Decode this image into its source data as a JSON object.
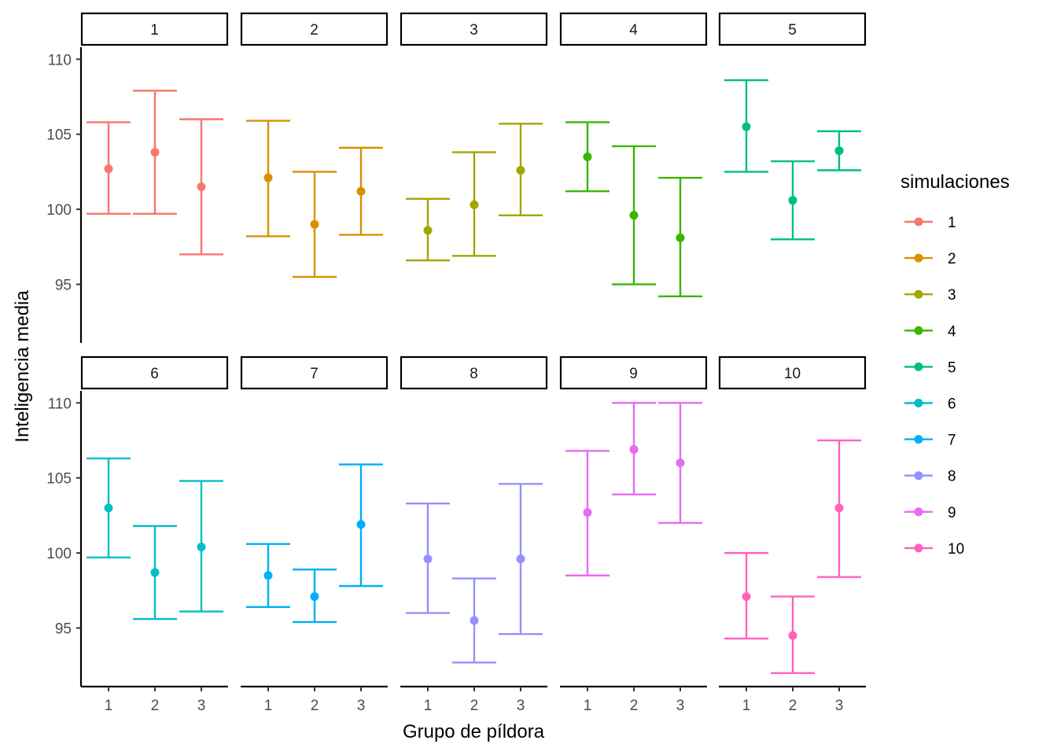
{
  "chart_data": {
    "type": "errorbar",
    "xlabel": "Grupo de píldora",
    "ylabel": "Inteligencia media",
    "categories": [
      "1",
      "2",
      "3"
    ],
    "ylim": [
      91.1,
      110.8
    ],
    "yticks": [
      95,
      100,
      105,
      110
    ],
    "layout": "facet grid, 2 rows x 5 columns",
    "legend": {
      "title": "simulaciones",
      "position": "right",
      "items": [
        "1",
        "2",
        "3",
        "4",
        "5",
        "6",
        "7",
        "8",
        "9",
        "10"
      ]
    },
    "grid": false,
    "panels": [
      {
        "facet": "1",
        "color": "#F8766D",
        "mean": [
          102.7,
          103.8,
          101.5
        ],
        "lower": [
          99.7,
          99.7,
          97.0
        ],
        "upper": [
          105.8,
          107.9,
          106.0
        ]
      },
      {
        "facet": "2",
        "color": "#D89000",
        "mean": [
          102.1,
          99.0,
          101.2
        ],
        "lower": [
          98.2,
          95.5,
          98.3
        ],
        "upper": [
          105.9,
          102.5,
          104.1
        ]
      },
      {
        "facet": "3",
        "color": "#A3A500",
        "mean": [
          98.6,
          100.3,
          102.6
        ],
        "lower": [
          96.6,
          96.9,
          99.6
        ],
        "upper": [
          100.7,
          103.8,
          105.7
        ]
      },
      {
        "facet": "4",
        "color": "#39B600",
        "mean": [
          103.5,
          99.6,
          98.1
        ],
        "lower": [
          101.2,
          95.0,
          94.2
        ],
        "upper": [
          105.8,
          104.2,
          102.1
        ]
      },
      {
        "facet": "5",
        "color": "#00BF7D",
        "mean": [
          105.5,
          100.6,
          103.9
        ],
        "lower": [
          102.5,
          98.0,
          102.6
        ],
        "upper": [
          108.6,
          103.2,
          105.2
        ]
      },
      {
        "facet": "6",
        "color": "#00BFC4",
        "mean": [
          103.0,
          98.7,
          100.4
        ],
        "lower": [
          99.7,
          95.6,
          96.1
        ],
        "upper": [
          106.3,
          101.8,
          104.8
        ]
      },
      {
        "facet": "7",
        "color": "#00B0F6",
        "mean": [
          98.5,
          97.1,
          101.9
        ],
        "lower": [
          96.4,
          95.4,
          97.8
        ],
        "upper": [
          100.6,
          98.9,
          105.9
        ]
      },
      {
        "facet": "8",
        "color": "#9590FF",
        "mean": [
          99.6,
          95.5,
          99.6
        ],
        "lower": [
          96.0,
          92.7,
          94.6
        ],
        "upper": [
          103.3,
          98.3,
          104.6
        ]
      },
      {
        "facet": "9",
        "color": "#E76BF3",
        "mean": [
          102.7,
          106.9,
          106.0
        ],
        "lower": [
          98.5,
          103.9,
          102.0
        ],
        "upper": [
          106.8,
          110.0,
          110.0
        ]
      },
      {
        "facet": "10",
        "color": "#FF62BC",
        "mean": [
          97.1,
          94.5,
          103.0
        ],
        "lower": [
          94.3,
          92.0,
          98.4
        ],
        "upper": [
          100.0,
          97.1,
          107.5
        ]
      }
    ]
  }
}
